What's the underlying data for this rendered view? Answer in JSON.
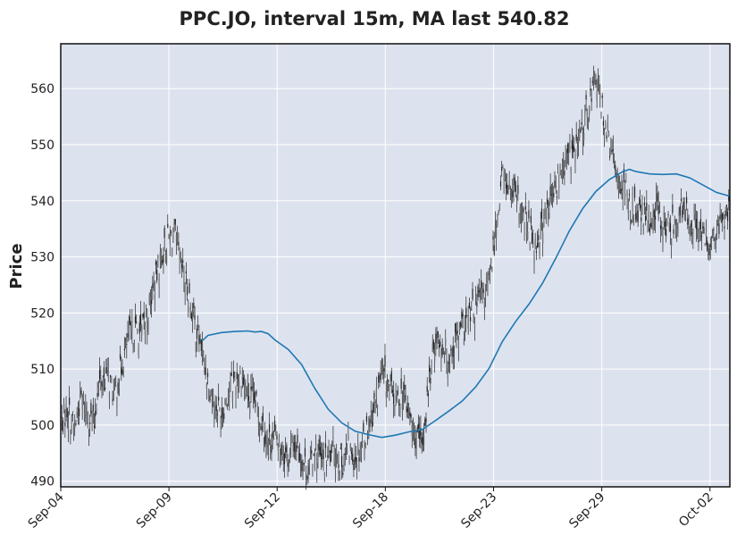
{
  "chart_data": {
    "type": "candlestick",
    "title": "PPC.JO, interval 15m, MA last 540.82",
    "xlabel": "",
    "ylabel": "Price",
    "ylim": [
      489,
      568
    ],
    "yticks": [
      490,
      500,
      510,
      520,
      530,
      540,
      550,
      560
    ],
    "xticks": [
      {
        "label": "Sep-04",
        "pos": 0.0
      },
      {
        "label": "Sep-09",
        "pos": 0.1617
      },
      {
        "label": "Sep-12",
        "pos": 0.3234
      },
      {
        "label": "Sep-18",
        "pos": 0.4851
      },
      {
        "label": "Sep-23",
        "pos": 0.6469
      },
      {
        "label": "Sep-29",
        "pos": 0.8086
      },
      {
        "label": "Oct-02",
        "pos": 0.9703
      }
    ],
    "grid": true,
    "background": "#dde3ee",
    "ma_color": "#1f77b4",
    "candle_color": "#222222",
    "ma_last": 540.82,
    "price_path": [
      [
        0.0,
        500
      ],
      [
        0.01,
        503
      ],
      [
        0.02,
        499
      ],
      [
        0.03,
        505
      ],
      [
        0.04,
        502
      ],
      [
        0.05,
        500
      ],
      [
        0.055,
        507
      ],
      [
        0.07,
        509
      ],
      [
        0.08,
        505
      ],
      [
        0.09,
        510
      ],
      [
        0.1,
        515
      ],
      [
        0.11,
        517
      ],
      [
        0.12,
        516
      ],
      [
        0.13,
        520
      ],
      [
        0.14,
        525
      ],
      [
        0.15,
        530
      ],
      [
        0.16,
        533
      ],
      [
        0.17,
        534
      ],
      [
        0.18,
        528
      ],
      [
        0.19,
        524
      ],
      [
        0.2,
        518
      ],
      [
        0.21,
        514
      ],
      [
        0.22,
        508
      ],
      [
        0.23,
        504
      ],
      [
        0.24,
        502
      ],
      [
        0.25,
        506
      ],
      [
        0.26,
        508
      ],
      [
        0.27,
        509
      ],
      [
        0.28,
        505
      ],
      [
        0.29,
        504
      ],
      [
        0.3,
        501
      ],
      [
        0.31,
        497
      ],
      [
        0.32,
        498
      ],
      [
        0.33,
        496
      ],
      [
        0.34,
        494
      ],
      [
        0.35,
        497
      ],
      [
        0.36,
        494
      ],
      [
        0.37,
        492
      ],
      [
        0.38,
        496
      ],
      [
        0.39,
        493
      ],
      [
        0.4,
        494
      ],
      [
        0.41,
        496
      ],
      [
        0.42,
        493
      ],
      [
        0.43,
        496
      ],
      [
        0.44,
        494
      ],
      [
        0.45,
        497
      ],
      [
        0.46,
        500
      ],
      [
        0.47,
        504
      ],
      [
        0.48,
        509
      ],
      [
        0.49,
        507
      ],
      [
        0.5,
        504
      ],
      [
        0.51,
        506
      ],
      [
        0.52,
        502
      ],
      [
        0.53,
        498
      ],
      [
        0.54,
        496
      ],
      [
        0.55,
        507
      ],
      [
        0.56,
        516
      ],
      [
        0.57,
        514
      ],
      [
        0.58,
        512
      ],
      [
        0.59,
        515
      ],
      [
        0.6,
        517
      ],
      [
        0.61,
        519
      ],
      [
        0.62,
        521
      ],
      [
        0.63,
        523
      ],
      [
        0.64,
        525
      ],
      [
        0.65,
        535
      ],
      [
        0.66,
        545
      ],
      [
        0.67,
        542
      ],
      [
        0.68,
        540
      ],
      [
        0.69,
        537
      ],
      [
        0.7,
        535
      ],
      [
        0.71,
        532
      ],
      [
        0.72,
        536
      ],
      [
        0.73,
        539
      ],
      [
        0.74,
        542
      ],
      [
        0.75,
        546
      ],
      [
        0.76,
        548
      ],
      [
        0.77,
        549
      ],
      [
        0.78,
        553
      ],
      [
        0.79,
        558
      ],
      [
        0.8,
        562
      ],
      [
        0.81,
        556
      ],
      [
        0.82,
        550
      ],
      [
        0.83,
        545
      ],
      [
        0.84,
        543
      ],
      [
        0.85,
        539
      ],
      [
        0.86,
        538
      ],
      [
        0.87,
        537
      ],
      [
        0.88,
        536
      ],
      [
        0.89,
        539
      ],
      [
        0.9,
        536
      ],
      [
        0.91,
        535
      ],
      [
        0.92,
        537
      ],
      [
        0.93,
        538
      ],
      [
        0.94,
        537
      ],
      [
        0.95,
        536
      ],
      [
        0.96,
        533
      ],
      [
        0.97,
        532
      ],
      [
        0.98,
        534
      ],
      [
        0.99,
        537
      ],
      [
        1.0,
        538
      ]
    ],
    "ma_series": [
      [
        0.2109,
        515
      ],
      [
        0.22,
        516
      ],
      [
        0.24,
        516.5
      ],
      [
        0.26,
        516.7
      ],
      [
        0.28,
        516.8
      ],
      [
        0.29,
        516.6
      ],
      [
        0.3,
        516.7
      ],
      [
        0.31,
        516.3
      ],
      [
        0.32,
        515.2
      ],
      [
        0.34,
        513.5
      ],
      [
        0.36,
        510.8
      ],
      [
        0.38,
        506.5
      ],
      [
        0.4,
        502.8
      ],
      [
        0.42,
        500.4
      ],
      [
        0.44,
        498.9
      ],
      [
        0.46,
        498.3
      ],
      [
        0.48,
        497.8
      ],
      [
        0.5,
        498.2
      ],
      [
        0.52,
        498.8
      ],
      [
        0.54,
        499.2
      ],
      [
        0.56,
        500.8
      ],
      [
        0.58,
        502.5
      ],
      [
        0.6,
        504.3
      ],
      [
        0.62,
        506.8
      ],
      [
        0.64,
        510.1
      ],
      [
        0.66,
        514.9
      ],
      [
        0.68,
        518.5
      ],
      [
        0.7,
        521.6
      ],
      [
        0.72,
        525.3
      ],
      [
        0.74,
        529.8
      ],
      [
        0.76,
        534.6
      ],
      [
        0.78,
        538.6
      ],
      [
        0.8,
        541.7
      ],
      [
        0.82,
        543.8
      ],
      [
        0.84,
        545.2
      ],
      [
        0.85,
        545.6
      ],
      [
        0.86,
        545.2
      ],
      [
        0.88,
        544.8
      ],
      [
        0.9,
        544.7
      ],
      [
        0.92,
        544.8
      ],
      [
        0.94,
        544.1
      ],
      [
        0.96,
        542.8
      ],
      [
        0.98,
        541.5
      ],
      [
        1.0,
        540.82
      ]
    ]
  }
}
